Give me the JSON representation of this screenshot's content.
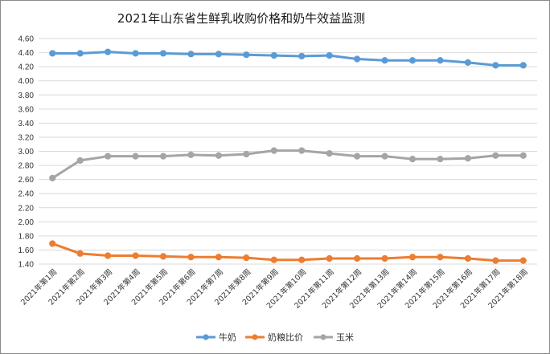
{
  "chart_data": {
    "type": "line",
    "title": "2021年山东省生鲜乳收购价格和奶牛效益监测",
    "xlabel": "",
    "ylabel": "",
    "ylim": [
      1.4,
      4.6
    ],
    "ytick_step": 0.2,
    "grid": true,
    "legend_position": "bottom",
    "categories": [
      "2021年第1周",
      "2021年第2周",
      "2021年第3周",
      "2021年第4周",
      "2021年第5周",
      "2021年第6周",
      "2021年第7周",
      "2021年第8周",
      "2021年第9周",
      "2021年第10周",
      "2021年第11周",
      "2021年第12周",
      "2021年第13周",
      "2021年第14周",
      "2021年第15周",
      "2021年第16周",
      "2021年第17周",
      "2021年第18周"
    ],
    "series": [
      {
        "name": "牛奶",
        "color": "#5b9bd5",
        "values": [
          4.39,
          4.39,
          4.41,
          4.39,
          4.39,
          4.38,
          4.38,
          4.37,
          4.36,
          4.35,
          4.36,
          4.31,
          4.29,
          4.29,
          4.29,
          4.26,
          4.22,
          4.22
        ]
      },
      {
        "name": "奶粮比价",
        "color": "#ed7d31",
        "values": [
          1.69,
          1.55,
          1.52,
          1.52,
          1.51,
          1.5,
          1.5,
          1.49,
          1.46,
          1.46,
          1.48,
          1.48,
          1.48,
          1.5,
          1.5,
          1.48,
          1.45,
          1.45
        ]
      },
      {
        "name": "玉米",
        "color": "#a5a5a5",
        "values": [
          2.62,
          2.87,
          2.93,
          2.93,
          2.93,
          2.95,
          2.94,
          2.96,
          3.01,
          3.01,
          2.97,
          2.93,
          2.93,
          2.89,
          2.89,
          2.9,
          2.94,
          2.94
        ]
      }
    ]
  }
}
